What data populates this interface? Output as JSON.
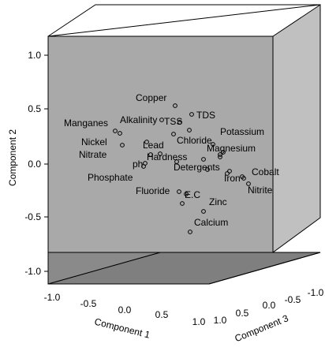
{
  "chart_data": {
    "type": "scatter",
    "projection": "3d",
    "axes": {
      "component1": {
        "label": "Component 1",
        "range": [
          -1.0,
          1.0
        ],
        "ticks": [
          "-1.0",
          "-0.5",
          "0.0",
          "0.5",
          "1.0"
        ]
      },
      "component2": {
        "label": "Component 2",
        "range": [
          -1.0,
          1.0
        ],
        "ticks": [
          "1.0",
          "0.5",
          "0.0",
          "-0.5",
          "-1.0"
        ]
      },
      "component3": {
        "label": "Component 3",
        "range": [
          -1.0,
          1.0
        ],
        "ticks": [
          "1.0",
          "0.5",
          "0.0",
          "-0.5",
          "-1.0"
        ]
      }
    },
    "points": [
      {
        "name": "Copper",
        "c2": 0.52
      },
      {
        "name": "TDS",
        "c2": 0.43
      },
      {
        "name": "TSS",
        "c2": 0.42
      },
      {
        "name": "Alkalinity",
        "c2": 0.37
      },
      {
        "name": "Manganes",
        "c2": 0.32
      },
      {
        "name": "Chloride",
        "c2": 0.27
      },
      {
        "name": "Nickel",
        "c2": 0.25
      },
      {
        "name": "Potassium",
        "c2": 0.22
      },
      {
        "name": "Magnesium",
        "c2": 0.15
      },
      {
        "name": "Nitrate",
        "c2": 0.14
      },
      {
        "name": "Lead",
        "c2": 0.13
      },
      {
        "name": "Hardness",
        "c2": 0.03
      },
      {
        "name": "Detergents",
        "c2": -0.02
      },
      {
        "name": "ph",
        "c2": -0.05
      },
      {
        "name": "Phosphate",
        "c2": -0.08
      },
      {
        "name": "Iron",
        "c2": -0.1
      },
      {
        "name": "Cobalt",
        "c2": -0.15
      },
      {
        "name": "Nitrite",
        "c2": -0.22
      },
      {
        "name": "Fluoride",
        "c2": -0.32
      },
      {
        "name": "E.C",
        "c2": -0.36
      },
      {
        "name": "Zinc",
        "c2": -0.45
      },
      {
        "name": "Calcium",
        "c2": -0.62
      }
    ],
    "colors": {
      "back_wall": "#a9a9a9",
      "side_wall": "#c0c0c0",
      "floor": "#7f7f7f",
      "marker": "#000000"
    }
  }
}
